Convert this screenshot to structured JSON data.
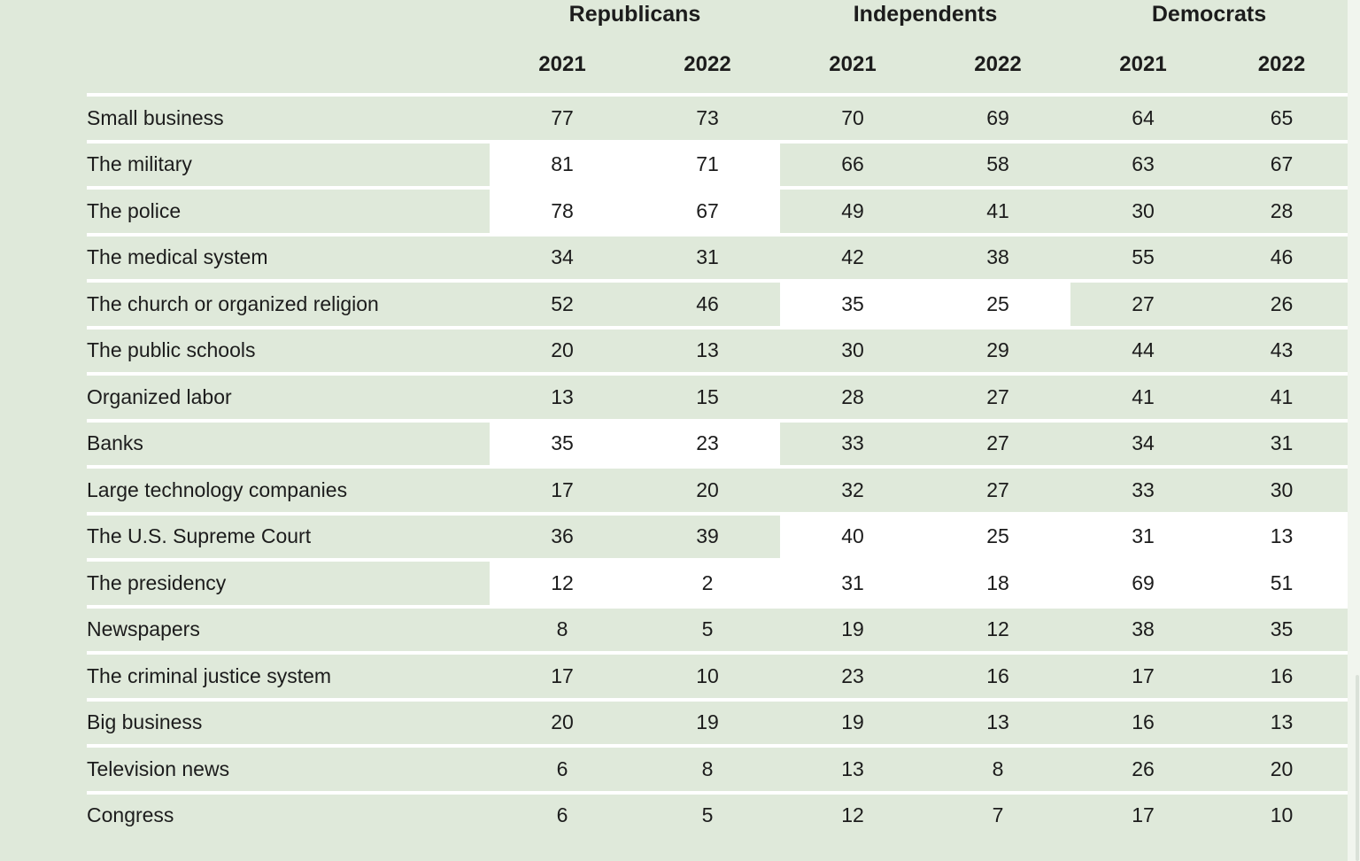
{
  "colors": {
    "background_green": "#dfe9da",
    "highlight_white": "#ffffff",
    "separator_white": "#ffffff",
    "text_dark": "#1c1c1c"
  },
  "table": {
    "groups": [
      {
        "label": "Republicans"
      },
      {
        "label": "Independents"
      },
      {
        "label": "Democrats"
      }
    ],
    "year_headers": [
      "2021",
      "2022",
      "2021",
      "2022",
      "2021",
      "2022"
    ],
    "rows": [
      {
        "label": "Small business",
        "values": [
          77,
          73,
          70,
          69,
          64,
          65
        ],
        "highlight": []
      },
      {
        "label": "The military",
        "values": [
          81,
          71,
          66,
          58,
          63,
          67
        ],
        "highlight": [
          0,
          1
        ]
      },
      {
        "label": "The police",
        "values": [
          78,
          67,
          49,
          41,
          30,
          28
        ],
        "highlight": [
          0,
          1
        ]
      },
      {
        "label": "The medical system",
        "values": [
          34,
          31,
          42,
          38,
          55,
          46
        ],
        "highlight": []
      },
      {
        "label": "The church or organized religion",
        "values": [
          52,
          46,
          35,
          25,
          27,
          26
        ],
        "highlight": [
          2,
          3
        ]
      },
      {
        "label": "The public schools",
        "values": [
          20,
          13,
          30,
          29,
          44,
          43
        ],
        "highlight": []
      },
      {
        "label": "Organized labor",
        "values": [
          13,
          15,
          28,
          27,
          41,
          41
        ],
        "highlight": []
      },
      {
        "label": "Banks",
        "values": [
          35,
          23,
          33,
          27,
          34,
          31
        ],
        "highlight": [
          0,
          1
        ]
      },
      {
        "label": "Large technology companies",
        "values": [
          17,
          20,
          32,
          27,
          33,
          30
        ],
        "highlight": []
      },
      {
        "label": "The U.S. Supreme Court",
        "values": [
          36,
          39,
          40,
          25,
          31,
          13
        ],
        "highlight": [
          2,
          3,
          4,
          5
        ]
      },
      {
        "label": "The presidency",
        "values": [
          12,
          2,
          31,
          18,
          69,
          51
        ],
        "highlight": [
          0,
          1,
          2,
          3,
          4,
          5
        ]
      },
      {
        "label": "Newspapers",
        "values": [
          8,
          5,
          19,
          12,
          38,
          35
        ],
        "highlight": []
      },
      {
        "label": "The criminal justice system",
        "values": [
          17,
          10,
          23,
          16,
          17,
          16
        ],
        "highlight": []
      },
      {
        "label": "Big business",
        "values": [
          20,
          19,
          19,
          13,
          16,
          13
        ],
        "highlight": []
      },
      {
        "label": "Television news",
        "values": [
          6,
          8,
          13,
          8,
          26,
          20
        ],
        "highlight": []
      },
      {
        "label": "Congress",
        "values": [
          6,
          5,
          12,
          7,
          17,
          10
        ],
        "highlight": []
      }
    ]
  },
  "chart_data": {
    "type": "table",
    "categories": [
      "Small business",
      "The military",
      "The police",
      "The medical system",
      "The church or organized religion",
      "The public schools",
      "Organized labor",
      "Banks",
      "Large technology companies",
      "The U.S. Supreme Court",
      "The presidency",
      "Newspapers",
      "The criminal justice system",
      "Big business",
      "Television news",
      "Congress"
    ],
    "series": [
      {
        "name": "Republicans 2021",
        "values": [
          77,
          81,
          78,
          34,
          52,
          20,
          13,
          35,
          17,
          36,
          12,
          8,
          17,
          20,
          6,
          6
        ]
      },
      {
        "name": "Republicans 2022",
        "values": [
          73,
          71,
          67,
          31,
          46,
          13,
          15,
          23,
          20,
          39,
          2,
          5,
          10,
          19,
          8,
          5
        ]
      },
      {
        "name": "Independents 2021",
        "values": [
          70,
          66,
          49,
          42,
          35,
          30,
          28,
          33,
          32,
          40,
          31,
          19,
          23,
          19,
          13,
          12
        ]
      },
      {
        "name": "Independents 2022",
        "values": [
          69,
          58,
          41,
          38,
          25,
          29,
          27,
          27,
          27,
          25,
          18,
          12,
          16,
          13,
          8,
          7
        ]
      },
      {
        "name": "Democrats 2021",
        "values": [
          64,
          63,
          30,
          55,
          27,
          44,
          41,
          34,
          33,
          31,
          69,
          38,
          17,
          16,
          26,
          17
        ]
      },
      {
        "name": "Democrats 2022",
        "values": [
          65,
          67,
          28,
          46,
          26,
          43,
          41,
          31,
          30,
          13,
          51,
          35,
          16,
          13,
          20,
          10
        ]
      }
    ],
    "layout": {
      "column_groups": [
        "Republicans",
        "Independents",
        "Democrats"
      ],
      "years_per_group": [
        "2021",
        "2022"
      ],
      "highlighted_cells_note": "white-highlighted cells",
      "grid": "white separator lines between rows on light green background"
    }
  }
}
